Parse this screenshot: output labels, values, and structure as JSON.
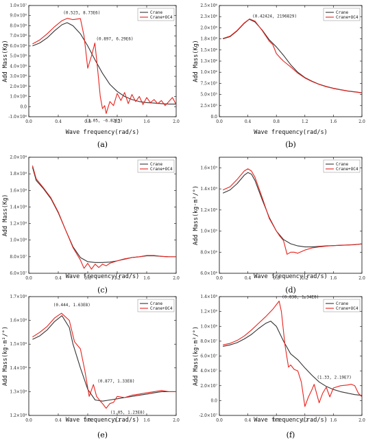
{
  "figure": {
    "panels_text": [
      "(a)",
      "(b)",
      "(c)",
      "(d)",
      "(e)",
      "(f)"
    ]
  },
  "chart_data": [
    {
      "panel": "(a)",
      "type": "line",
      "xlabel": "Wave frequency(rad/s)",
      "ylabel": "Add Mass(Kg)",
      "xlim": [
        0,
        2.0
      ],
      "ylim": [
        -1000000,
        10000000
      ],
      "xticks": [
        "0.0",
        "0.4",
        "0.8",
        "1.2",
        "1.6",
        "2.0"
      ],
      "xtick_values": [
        0,
        0.4,
        0.8,
        1.2,
        1.6,
        2.0
      ],
      "yticks": [
        "-1.0×10⁶",
        "0.0",
        "1.0×10⁶",
        "2.0×10⁶",
        "3.0×10⁶",
        "4.0×10⁶",
        "5.0×10⁶",
        "6.0×10⁶",
        "7.0×10⁶",
        "8.0×10⁶",
        "9.0×10⁶",
        "1.0×10⁷"
      ],
      "ytick_values": [
        -1000000,
        0,
        1000000,
        2000000,
        3000000,
        4000000,
        5000000,
        6000000,
        7000000,
        8000000,
        9000000,
        10000000
      ],
      "legend_position": "top-right",
      "series": [
        {
          "name": "Crane",
          "color": "#333333",
          "x": [
            0.05,
            0.15,
            0.25,
            0.35,
            0.45,
            0.52,
            0.6,
            0.7,
            0.8,
            0.9,
            1.0,
            1.1,
            1.2,
            1.3,
            1.4,
            1.5,
            1.6,
            1.7,
            1.8,
            1.9,
            2.0
          ],
          "y": [
            6000000,
            6300000,
            6800000,
            7500000,
            8100000,
            8300000,
            8000000,
            7200000,
            6000000,
            4600000,
            3300000,
            2200000,
            1500000,
            1000000,
            700000,
            500000,
            400000,
            350000,
            300000,
            250000,
            250000
          ]
        },
        {
          "name": "Crane+OC4",
          "color": "#e8211b",
          "x": [
            0.05,
            0.15,
            0.25,
            0.35,
            0.45,
            0.523,
            0.6,
            0.7,
            0.75,
            0.8,
            0.85,
            0.897,
            0.93,
            0.97,
            1.0,
            1.03,
            1.05,
            1.1,
            1.15,
            1.2,
            1.25,
            1.3,
            1.35,
            1.4,
            1.45,
            1.5,
            1.55,
            1.6,
            1.65,
            1.7,
            1.75,
            1.8,
            1.85,
            1.9,
            1.95,
            2.0
          ],
          "y": [
            6200000,
            6600000,
            7200000,
            7900000,
            8500000,
            8730000,
            8600000,
            8700000,
            7000000,
            3800000,
            5000000,
            6290000,
            4000000,
            1000000,
            -200000,
            100000,
            -682000,
            500000,
            100000,
            1300000,
            600000,
            1400000,
            300000,
            1200000,
            500000,
            1000000,
            200000,
            900000,
            400000,
            700000,
            300000,
            600000,
            100000,
            500000,
            900000,
            200000
          ]
        }
      ],
      "annotations": [
        "(0.523, 8.73E6)",
        "(0.897, 6.29E6)",
        "(1.05, -6.82E5)"
      ],
      "annotation_points": [
        [
          0.523,
          8730000
        ],
        [
          0.897,
          6290000
        ],
        [
          1.05,
          -682000
        ]
      ]
    },
    {
      "panel": "(b)",
      "type": "line",
      "xlabel": "Wave frequency(rad/s)",
      "ylabel": "Add Mass(Kg)",
      "xlim": [
        0,
        2.0
      ],
      "ylim": [
        0,
        2500000
      ],
      "xticks": [
        "0.0",
        "0.4",
        "0.8",
        "1.2",
        "1.6",
        "2.0"
      ],
      "xtick_values": [
        0,
        0.4,
        0.8,
        1.2,
        1.6,
        2.0
      ],
      "yticks": [
        "0.0",
        "2.5×10⁵",
        "5.0×10⁵",
        "7.5×10⁵",
        "1.0×10⁶",
        "1.3×10⁶",
        "1.5×10⁶",
        "1.8×10⁶",
        "2.0×10⁶",
        "2.3×10⁶",
        "2.5×10⁶"
      ],
      "ytick_values": [
        0,
        250000,
        500000,
        750000,
        1000000,
        1250000,
        1500000,
        1750000,
        2000000,
        2250000,
        2500000
      ],
      "legend_position": "top-right",
      "series": [
        {
          "name": "Crane",
          "color": "#333333",
          "x": [
            0.05,
            0.15,
            0.25,
            0.35,
            0.42,
            0.5,
            0.6,
            0.7,
            0.8,
            0.9,
            1.0,
            1.1,
            1.2,
            1.3,
            1.4,
            1.5,
            1.6,
            1.7,
            1.8,
            1.9,
            2.0
          ],
          "y": [
            1750000,
            1800000,
            1930000,
            2100000,
            2190000,
            2130000,
            1950000,
            1730000,
            1570000,
            1380000,
            1170000,
            1000000,
            880000,
            800000,
            730000,
            680000,
            640000,
            610000,
            580000,
            560000,
            540000
          ]
        },
        {
          "name": "Crane+OC4",
          "color": "#e8211b",
          "x": [
            0.05,
            0.15,
            0.25,
            0.35,
            0.42424,
            0.5,
            0.6,
            0.7,
            0.75,
            0.8,
            0.85,
            0.9,
            1.0,
            1.1,
            1.2,
            1.3,
            1.4,
            1.5,
            1.6,
            1.7,
            1.8,
            1.9,
            2.0
          ],
          "y": [
            1760000,
            1810000,
            1940000,
            2110000,
            2196829,
            2150000,
            1940000,
            1700000,
            1620000,
            1420000,
            1330000,
            1250000,
            1120000,
            980000,
            870000,
            790000,
            725000,
            675000,
            635000,
            605000,
            575000,
            555000,
            535000
          ]
        }
      ],
      "annotations": [
        "(0.42424, 2196829)"
      ],
      "annotation_points": [
        [
          0.42424,
          2196829
        ]
      ]
    },
    {
      "panel": "(c)",
      "type": "line",
      "xlabel": "Wave frequency(rad/s)",
      "ylabel": "Add Mass(Kg)",
      "xlim": [
        0,
        2.0
      ],
      "ylim": [
        60000000,
        200000000
      ],
      "xticks": [
        "0.0",
        "0.4",
        "0.8",
        "1.2",
        "1.6",
        "2.0"
      ],
      "xtick_values": [
        0,
        0.4,
        0.8,
        1.2,
        1.6,
        2.0
      ],
      "yticks": [
        "6.0×10⁷",
        "8.0×10⁷",
        "1.0×10⁸",
        "1.2×10⁸",
        "1.4×10⁸",
        "1.6×10⁸",
        "1.8×10⁸",
        "2.0×10⁸"
      ],
      "ytick_values": [
        60000000,
        80000000,
        100000000,
        120000000,
        140000000,
        160000000,
        180000000,
        200000000
      ],
      "legend_position": "top-right",
      "series": [
        {
          "name": "Crane",
          "color": "#333333",
          "x": [
            0.05,
            0.1,
            0.2,
            0.3,
            0.4,
            0.5,
            0.6,
            0.7,
            0.8,
            0.9,
            1.0,
            1.1,
            1.2,
            1.3,
            1.4,
            1.5,
            1.6,
            1.7,
            1.8,
            1.9,
            2.0
          ],
          "y": [
            188000000,
            172000000,
            162000000,
            150000000,
            133000000,
            112000000,
            92000000,
            79000000,
            74000000,
            73000000,
            73000000,
            73500000,
            75000000,
            77000000,
            79000000,
            80000000,
            81000000,
            81000000,
            80500000,
            80000000,
            80000000
          ]
        },
        {
          "name": "Crane+OC4",
          "color": "#e8211b",
          "x": [
            0.05,
            0.1,
            0.2,
            0.3,
            0.4,
            0.5,
            0.6,
            0.7,
            0.75,
            0.8,
            0.85,
            0.9,
            0.95,
            1.0,
            1.05,
            1.1,
            1.2,
            1.3,
            1.4,
            1.5,
            1.6,
            1.7,
            1.8,
            1.9,
            2.0
          ],
          "y": [
            190000000,
            174000000,
            163000000,
            151000000,
            134000000,
            112000000,
            91000000,
            76000000,
            66000000,
            72000000,
            65000000,
            71000000,
            67000000,
            71000000,
            69000000,
            72000000,
            75000000,
            77500000,
            79000000,
            80000000,
            81500000,
            81500000,
            80500000,
            80000000,
            80000000
          ]
        }
      ]
    },
    {
      "panel": "(d)",
      "type": "line",
      "xlabel": "Wave frequency(rad/s)",
      "ylabel": "Add Mass(kg·m²/°)",
      "xlim": [
        0,
        2.0
      ],
      "ylim": [
        600000000,
        1700000000
      ],
      "xticks": [
        "0.0",
        "0.4",
        "0.8",
        "1.2",
        "1.6",
        "2.0"
      ],
      "xtick_values": [
        0,
        0.4,
        0.8,
        1.2,
        1.6,
        2.0
      ],
      "yticks": [
        "6.0×10⁸",
        "8.0×10⁸",
        "1.0×10⁹",
        "1.2×10⁹",
        "1.4×10⁹",
        "1.6×10⁹"
      ],
      "ytick_values": [
        600000000,
        800000000,
        1000000000,
        1200000000,
        1400000000,
        1600000000
      ],
      "legend_position": "top-right",
      "series": [
        {
          "name": "Crane",
          "color": "#333333",
          "x": [
            0.05,
            0.15,
            0.25,
            0.35,
            0.4,
            0.45,
            0.5,
            0.6,
            0.7,
            0.8,
            0.9,
            1.0,
            1.1,
            1.2,
            1.3,
            1.4,
            1.5,
            1.6,
            1.7,
            1.8,
            1.9,
            2.0
          ],
          "y": [
            1360000000,
            1390000000,
            1450000000,
            1530000000,
            1555000000,
            1540000000,
            1480000000,
            1300000000,
            1130000000,
            1000000000,
            920000000,
            880000000,
            860000000,
            850000000,
            850000000,
            855000000,
            860000000,
            862000000,
            865000000,
            868000000,
            872000000,
            878000000
          ]
        },
        {
          "name": "Crane+OC4",
          "color": "#e8211b",
          "x": [
            0.05,
            0.15,
            0.25,
            0.35,
            0.4,
            0.45,
            0.5,
            0.6,
            0.7,
            0.8,
            0.85,
            0.9,
            0.95,
            1.0,
            1.05,
            1.1,
            1.2,
            1.3,
            1.4,
            1.5,
            1.6,
            1.7,
            1.8,
            1.9,
            2.0
          ],
          "y": [
            1390000000,
            1420000000,
            1490000000,
            1570000000,
            1590000000,
            1570000000,
            1510000000,
            1320000000,
            1120000000,
            1000000000,
            950000000,
            910000000,
            780000000,
            800000000,
            800000000,
            790000000,
            820000000,
            840000000,
            850000000,
            858000000,
            862000000,
            866000000,
            868000000,
            870000000,
            880000000
          ]
        }
      ]
    },
    {
      "panel": "(e)",
      "type": "line",
      "xlabel": "Wave frequency(rad/s)",
      "ylabel": "Add Mass(kg·m²/°)",
      "xlim": [
        0,
        2.0
      ],
      "ylim": [
        120000000,
        170000000
      ],
      "xticks": [
        "0.0",
        "0.4",
        "0.8",
        "1.2",
        "1.6",
        "2.0"
      ],
      "xtick_values": [
        0,
        0.4,
        0.8,
        1.2,
        1.6,
        2.0
      ],
      "yticks": [
        "1.2×10⁸",
        "1.3×10⁸",
        "1.4×10⁸",
        "1.5×10⁸",
        "1.6×10⁸",
        "1.7×10⁸"
      ],
      "ytick_values": [
        120000000,
        130000000,
        140000000,
        150000000,
        160000000,
        170000000
      ],
      "legend_position": "top-right",
      "series": [
        {
          "name": "Crane",
          "color": "#333333",
          "x": [
            0.05,
            0.15,
            0.25,
            0.35,
            0.45,
            0.55,
            0.6,
            0.7,
            0.8,
            0.9,
            1.0,
            1.1,
            1.2,
            1.3,
            1.4,
            1.5,
            1.6,
            1.7,
            1.8,
            1.9,
            2.0
          ],
          "y": [
            152000000,
            153500000,
            156000000,
            159500000,
            162000000,
            157000000,
            150000000,
            140000000,
            131000000,
            126500000,
            126000000,
            126500000,
            127000000,
            127500000,
            128000000,
            128500000,
            129000000,
            129500000,
            130000000,
            130000000,
            130000000
          ]
        },
        {
          "name": "Crane+OC4",
          "color": "#e8211b",
          "x": [
            0.05,
            0.15,
            0.25,
            0.35,
            0.444,
            0.55,
            0.62,
            0.7,
            0.76,
            0.82,
            0.877,
            0.92,
            0.97,
            1.0,
            1.05,
            1.1,
            1.15,
            1.2,
            1.3,
            1.4,
            1.5,
            1.6,
            1.7,
            1.8,
            1.9,
            2.0
          ],
          "y": [
            153000000,
            155000000,
            157500000,
            161000000,
            163000000,
            160000000,
            151000000,
            148000000,
            139000000,
            128000000,
            133000000,
            128000000,
            126000000,
            125000000,
            123000000,
            125000000,
            125500000,
            128000000,
            127500000,
            128500000,
            129000000,
            129500000,
            130000000,
            130500000,
            130000000,
            130000000
          ]
        }
      ],
      "annotations": [
        "(0.444, 1.63E8)",
        "(0.877, 1.33E8)",
        "(1.05, 1.23E8)"
      ],
      "annotation_points": [
        [
          0.444,
          163000000
        ],
        [
          0.877,
          133000000
        ],
        [
          1.05,
          123000000
        ]
      ]
    },
    {
      "panel": "(f)",
      "type": "line",
      "xlabel": "Wave frequency(rad/s)",
      "ylabel": "Add Mass(kg·m²/°)",
      "xlim": [
        0,
        2.0
      ],
      "ylim": [
        -20000000,
        140000000
      ],
      "xticks": [
        "0.0",
        "0.4",
        "0.8",
        "1.2",
        "1.6",
        "2.0"
      ],
      "xtick_values": [
        0,
        0.4,
        0.8,
        1.2,
        1.6,
        2.0
      ],
      "yticks": [
        "-2.0×10⁷",
        "0.0",
        "2.0×10⁷",
        "4.0×10⁷",
        "6.0×10⁷",
        "8.0×10⁷",
        "1.0×10⁸",
        "1.2×10⁸",
        "1.4×10⁸"
      ],
      "ytick_values": [
        -20000000,
        0,
        20000000,
        40000000,
        60000000,
        80000000,
        100000000,
        120000000,
        140000000
      ],
      "legend_position": "top-right",
      "series": [
        {
          "name": "Crane",
          "color": "#333333",
          "x": [
            0.05,
            0.15,
            0.25,
            0.35,
            0.45,
            0.55,
            0.65,
            0.72,
            0.8,
            0.9,
            1.0,
            1.1,
            1.2,
            1.3,
            1.4,
            1.5,
            1.6,
            1.7,
            1.8,
            1.9,
            2.0
          ],
          "y": [
            73000000,
            75000000,
            78000000,
            83000000,
            89000000,
            97000000,
            104000000,
            107000000,
            100000000,
            80000000,
            63000000,
            55000000,
            44000000,
            34000000,
            25000000,
            19000000,
            15000000,
            12000000,
            10000000,
            8000000,
            7000000
          ]
        },
        {
          "name": "Crane+OC4",
          "color": "#e8211b",
          "x": [
            0.05,
            0.15,
            0.25,
            0.35,
            0.45,
            0.55,
            0.65,
            0.75,
            0.838,
            0.87,
            0.92,
            0.97,
            1.0,
            1.05,
            1.1,
            1.15,
            1.2,
            1.25,
            1.3,
            1.33,
            1.4,
            1.45,
            1.5,
            1.55,
            1.6,
            1.7,
            1.8,
            1.85,
            1.9,
            1.95,
            2.0
          ],
          "y": [
            75000000,
            77000000,
            81000000,
            87000000,
            95000000,
            104000000,
            113000000,
            123000000,
            134000000,
            120000000,
            75000000,
            45000000,
            48000000,
            42000000,
            40000000,
            25000000,
            -8000000,
            5000000,
            15000000,
            21900000,
            -3000000,
            10000000,
            18000000,
            5000000,
            17000000,
            20000000,
            21000000,
            22000000,
            20000000,
            10000000,
            5000000
          ]
        }
      ],
      "annotations": [
        "(0.838, 1.34E8)",
        "(1.33, 2.19E7)"
      ],
      "annotation_points": [
        [
          0.838,
          134000000
        ],
        [
          1.33,
          21900000
        ]
      ]
    }
  ]
}
